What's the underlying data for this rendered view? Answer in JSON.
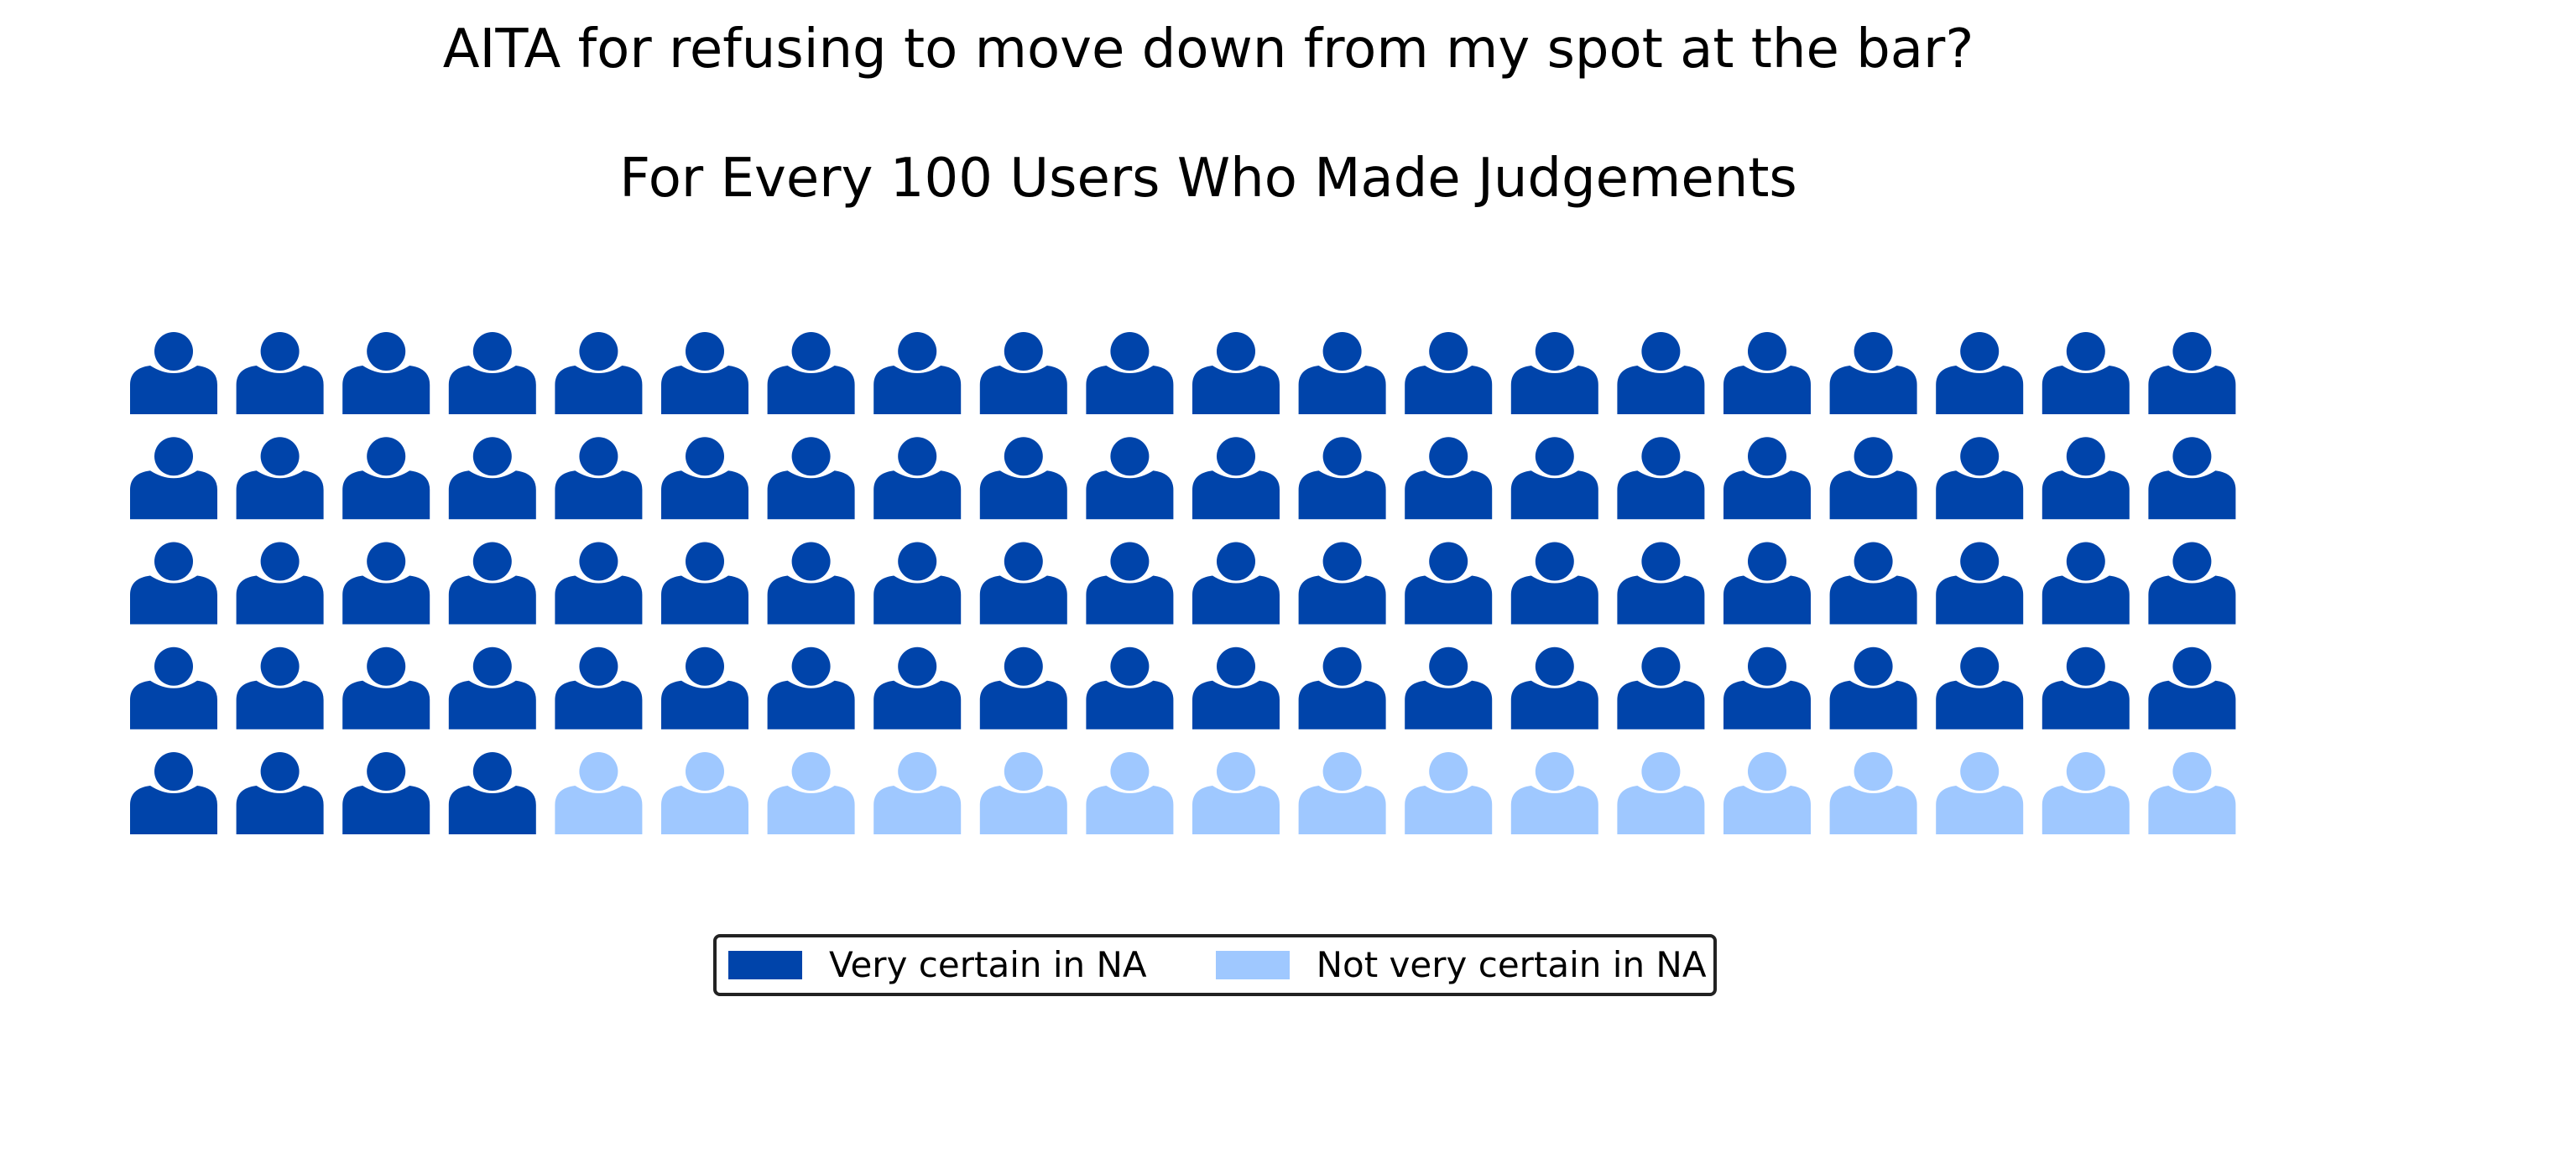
{
  "chart_data": {
    "type": "waffle",
    "title": "AITA for refusing to move down from my spot at the bar?",
    "subtitle": "For Every 100 Users Who Made Judgements",
    "rows": 5,
    "columns": 20,
    "icon": "person-icon",
    "categories": [
      "Very certain in NA",
      "Not very certain in NA"
    ],
    "values": [
      84,
      16
    ],
    "colors": [
      "#0044aa",
      "#9fc8ff"
    ],
    "legend": {
      "placement": "bottom-center",
      "entries": [
        {
          "label": "Very certain in NA",
          "color": "#0044aa"
        },
        {
          "label": "Not very certain in NA",
          "color": "#9fc8ff"
        }
      ]
    }
  }
}
